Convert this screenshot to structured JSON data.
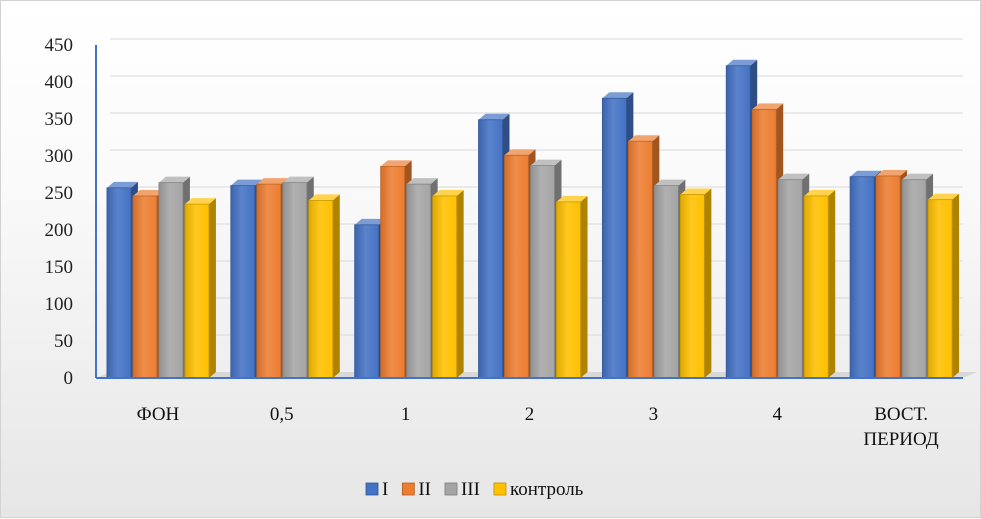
{
  "chart_data": {
    "type": "bar",
    "title": "",
    "xlabel": "",
    "ylabel": "",
    "categories": [
      [
        "ФОН"
      ],
      [
        "0,5"
      ],
      [
        "1"
      ],
      [
        "2"
      ],
      [
        "3"
      ],
      [
        "4"
      ],
      [
        "ВОСТ.",
        "ПЕРИОД"
      ]
    ],
    "series": [
      {
        "name": "I",
        "color": "#4472c4",
        "values": [
          257,
          260,
          207,
          349,
          378,
          422,
          272
        ]
      },
      {
        "name": "II",
        "color": "#ed7d31",
        "values": [
          246,
          262,
          286,
          301,
          320,
          363,
          273
        ]
      },
      {
        "name": "III",
        "color": "#a5a5a5",
        "values": [
          264,
          264,
          262,
          287,
          260,
          268,
          268
        ]
      },
      {
        "name": "контроль",
        "color": "#ffc000",
        "values": [
          235,
          240,
          246,
          238,
          248,
          246,
          241
        ]
      }
    ],
    "ylim": [
      0,
      450
    ],
    "yticks": [
      0,
      50,
      100,
      150,
      200,
      250,
      300,
      350,
      400,
      450
    ],
    "grid": true,
    "legend_position": "bottom"
  }
}
